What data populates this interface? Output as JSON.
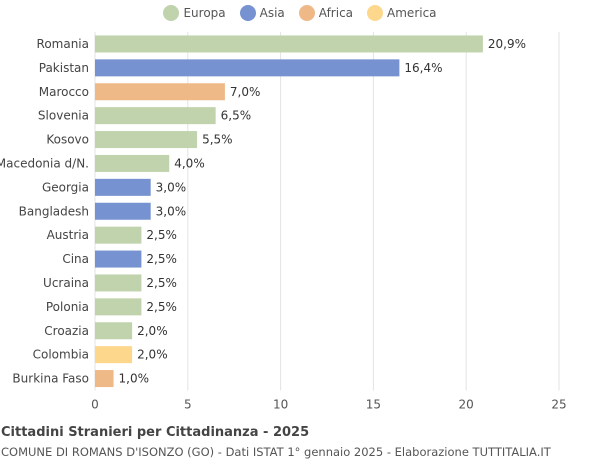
{
  "legend": [
    {
      "label": "Europa",
      "color": "#c0d3ad"
    },
    {
      "label": "Asia",
      "color": "#7692d0"
    },
    {
      "label": "Africa",
      "color": "#efb987"
    },
    {
      "label": "America",
      "color": "#fdd78b"
    }
  ],
  "footer": {
    "title": "Cittadini Stranieri per Cittadinanza - 2025",
    "subtitle": "COMUNE DI ROMANS D'ISONZO (GO) - Dati ISTAT 1° gennaio 2025 - Elaborazione TUTTITALIA.IT"
  },
  "chart_data": {
    "type": "bar",
    "orientation": "horizontal",
    "title": "Cittadini Stranieri per Cittadinanza - 2025",
    "xlim": [
      0,
      25
    ],
    "xticks": [
      0,
      5,
      10,
      15,
      20,
      25
    ],
    "grid": true,
    "legend_position": "top",
    "categories": [
      "Romania",
      "Pakistan",
      "Marocco",
      "Slovenia",
      "Kosovo",
      "Macedonia d/N.",
      "Georgia",
      "Bangladesh",
      "Austria",
      "Cina",
      "Ucraina",
      "Polonia",
      "Croazia",
      "Colombia",
      "Burkina Faso"
    ],
    "values": [
      20.9,
      16.4,
      7.0,
      6.5,
      5.5,
      4.0,
      3.0,
      3.0,
      2.5,
      2.5,
      2.5,
      2.5,
      2.0,
      2.0,
      1.0
    ],
    "labels": [
      "20,9%",
      "16,4%",
      "7,0%",
      "6,5%",
      "5,5%",
      "4,0%",
      "3,0%",
      "3,0%",
      "2,5%",
      "2,5%",
      "2,5%",
      "2,5%",
      "2,0%",
      "2,0%",
      "1,0%"
    ],
    "groups": [
      "Europa",
      "Asia",
      "Africa",
      "Europa",
      "Europa",
      "Europa",
      "Asia",
      "Asia",
      "Europa",
      "Asia",
      "Europa",
      "Europa",
      "Europa",
      "America",
      "Africa"
    ]
  }
}
